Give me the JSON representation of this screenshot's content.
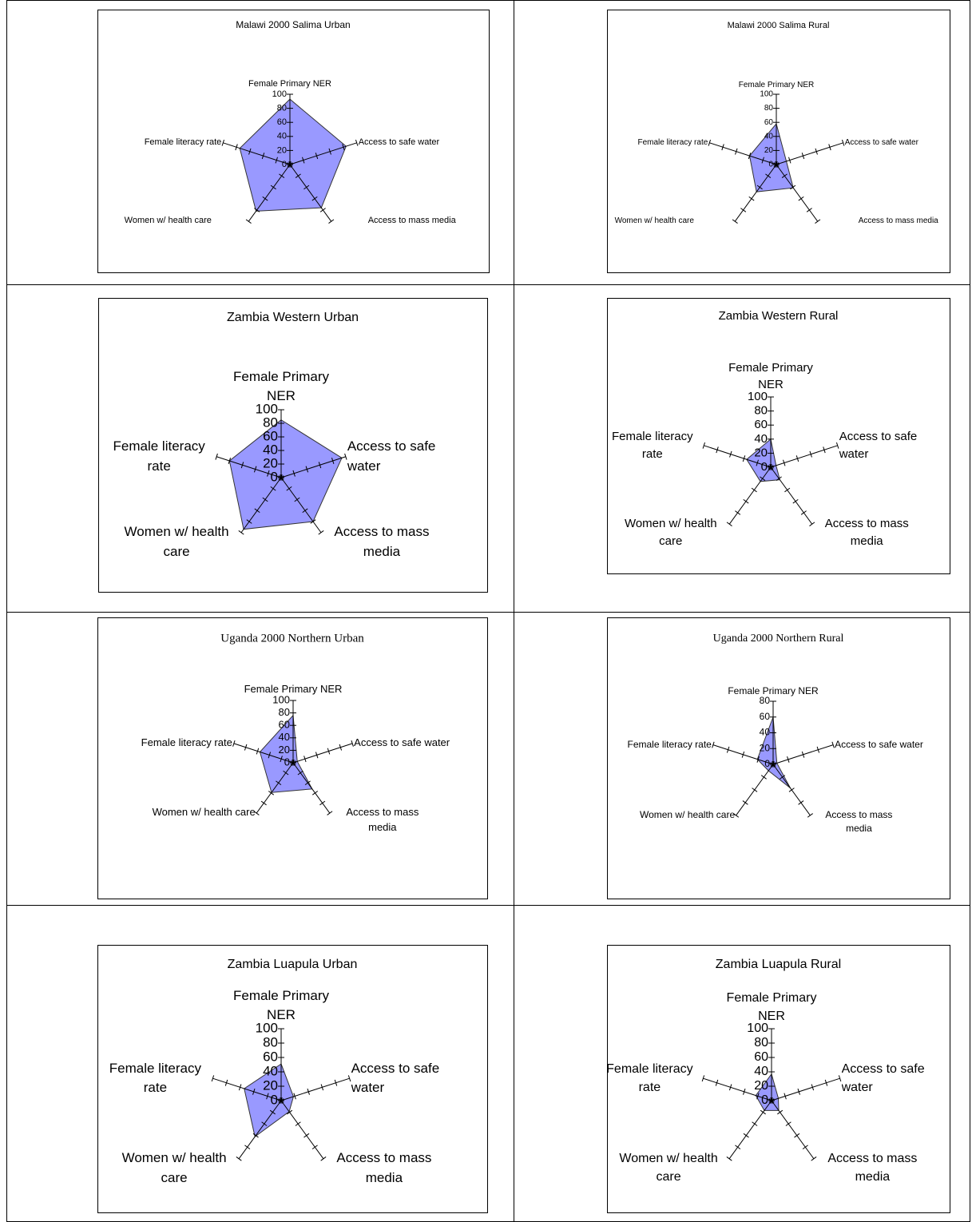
{
  "chart_data": [
    {
      "type": "radar",
      "title": "Malawi 2000 Salima Urban",
      "categories": [
        "Female Primary NER",
        "Access to safe water",
        "Access to mass media",
        "Women w/ health care",
        "Female literacy rate"
      ],
      "series": [
        {
          "color": "#9999ff",
          "values": [
            93,
            84,
            76,
            82,
            75
          ]
        }
      ],
      "ylim": [
        0,
        100
      ],
      "yticks": [
        0,
        20,
        40,
        60,
        80,
        100
      ]
    },
    {
      "type": "radar",
      "title": "Malawi 2000 Salima Rural",
      "categories": [
        "Female Primary NER",
        "Access to safe water",
        "Access to mass media",
        "Women w/ health care",
        "Female literacy rate"
      ],
      "series": [
        {
          "color": "#9999ff",
          "values": [
            58,
            15,
            41,
            48,
            40
          ]
        }
      ],
      "ylim": [
        0,
        100
      ],
      "yticks": [
        0,
        20,
        40,
        60,
        80,
        100
      ]
    },
    {
      "type": "radar",
      "title": "Zambia Western Urban",
      "categories": [
        "Female Primary NER",
        "Access to safe water",
        "Access to mass media",
        "Women w/ health care",
        "Female literacy rate"
      ],
      "series": [
        {
          "color": "#9999ff",
          "values": [
            85,
            94,
            80,
            94,
            80
          ]
        }
      ],
      "ylim": [
        0,
        100
      ],
      "yticks": [
        0,
        20,
        40,
        60,
        80,
        100
      ]
    },
    {
      "type": "radar",
      "title": "Zambia Western Rural",
      "categories": [
        "Female Primary NER",
        "Access to safe water",
        "Access to mass media",
        "Women w/ health care",
        "Female literacy rate"
      ],
      "series": [
        {
          "color": "#9999ff",
          "values": [
            40,
            8,
            22,
            25,
            36
          ]
        }
      ],
      "ylim": [
        0,
        100
      ],
      "yticks": [
        0,
        20,
        40,
        60,
        80,
        100
      ]
    },
    {
      "type": "radar",
      "title": "Uganda 2000 Northern Urban",
      "categories": [
        "Female Primary NER",
        "Access to safe water",
        "Access to mass media",
        "Women w/ health care",
        "Female literacy rate"
      ],
      "series": [
        {
          "color": "#9999ff",
          "values": [
            76,
            7,
            52,
            59,
            56
          ]
        }
      ],
      "ylim": [
        0,
        100
      ],
      "yticks": [
        0,
        20,
        40,
        60,
        80,
        100
      ]
    },
    {
      "type": "radar",
      "title": "Uganda 2000 Northern Rural",
      "categories": [
        "Female Primary NER",
        "Access to safe water",
        "Access to mass media",
        "Women w/ health care",
        "Female literacy rate"
      ],
      "series": [
        {
          "color": "#9999ff",
          "values": [
            60,
            5,
            37,
            10,
            21
          ]
        }
      ],
      "ylim": [
        0,
        80
      ],
      "yticks": [
        0,
        20,
        40,
        60,
        80
      ]
    },
    {
      "type": "radar",
      "title": "Zambia Luapula Urban",
      "categories": [
        "Female Primary NER",
        "Access to safe water",
        "Access to mass media",
        "Women w/ health care",
        "Female literacy rate"
      ],
      "series": [
        {
          "color": "#9999ff",
          "values": [
            51,
            18,
            19,
            62,
            54
          ]
        }
      ],
      "ylim": [
        0,
        100
      ],
      "yticks": [
        0,
        20,
        40,
        60,
        80,
        100
      ]
    },
    {
      "type": "radar",
      "title": "Zambia Luapula Rural",
      "categories": [
        "Female Primary NER",
        "Access to safe water",
        "Access to mass media",
        "Women w/ health care",
        "Female literacy rate"
      ],
      "series": [
        {
          "color": "#9999ff",
          "values": [
            37,
            10,
            17,
            17,
            23
          ]
        }
      ],
      "ylim": [
        0,
        100
      ],
      "yticks": [
        0,
        20,
        40,
        60,
        80,
        100
      ]
    }
  ]
}
